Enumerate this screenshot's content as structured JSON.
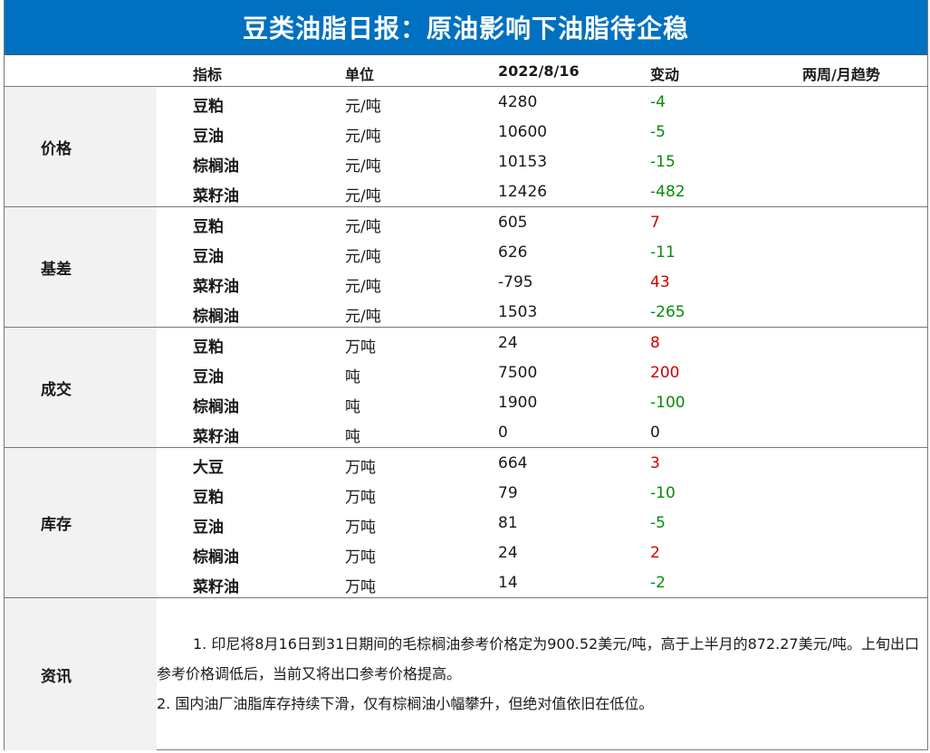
{
  "title": "豆类油脂日报：原油影响下油脂待企稳",
  "header": {
    "indicator": "指标",
    "unit": "单位",
    "date": "2022/8/16",
    "change": "变动",
    "trend": "两周/月趋势"
  },
  "sections": [
    {
      "label": "价格",
      "rows": [
        {
          "name": "豆粕",
          "unit": "元/吨",
          "value": "4280",
          "change": "-4",
          "dir": "down"
        },
        {
          "name": "豆油",
          "unit": "元/吨",
          "value": "10600",
          "change": "-5",
          "dir": "down"
        },
        {
          "name": "棕榈油",
          "unit": "元/吨",
          "value": "10153",
          "change": "-15",
          "dir": "down"
        },
        {
          "name": "菜籽油",
          "unit": "元/吨",
          "value": "12426",
          "change": "-482",
          "dir": "down"
        }
      ]
    },
    {
      "label": "基差",
      "rows": [
        {
          "name": "豆粕",
          "unit": "元/吨",
          "value": "605",
          "change": "7",
          "dir": "up"
        },
        {
          "name": "豆油",
          "unit": "元/吨",
          "value": "626",
          "change": "-11",
          "dir": "down"
        },
        {
          "name": "菜籽油",
          "unit": "元/吨",
          "value": "-795",
          "change": "43",
          "dir": "up"
        },
        {
          "name": "棕榈油",
          "unit": "元/吨",
          "value": "1503",
          "change": "-265",
          "dir": "down"
        }
      ]
    },
    {
      "label": "成交",
      "rows": [
        {
          "name": "豆粕",
          "unit": "万吨",
          "value": "24",
          "change": "8",
          "dir": "up"
        },
        {
          "name": "豆油",
          "unit": "吨",
          "value": "7500",
          "change": "200",
          "dir": "up"
        },
        {
          "name": "棕榈油",
          "unit": "吨",
          "value": "1900",
          "change": "-100",
          "dir": "down"
        },
        {
          "name": "菜籽油",
          "unit": "吨",
          "value": "0",
          "change": "0",
          "dir": "flat"
        }
      ]
    },
    {
      "label": "库存",
      "rows": [
        {
          "name": "大豆",
          "unit": "万吨",
          "value": "664",
          "change": "3",
          "dir": "up"
        },
        {
          "name": "豆粕",
          "unit": "万吨",
          "value": "79",
          "change": "-10",
          "dir": "down"
        },
        {
          "name": "豆油",
          "unit": "万吨",
          "value": "81",
          "change": "-5",
          "dir": "down"
        },
        {
          "name": "棕榈油",
          "unit": "万吨",
          "value": "24",
          "change": "2",
          "dir": "up"
        },
        {
          "name": "菜籽油",
          "unit": "万吨",
          "value": "14",
          "change": "-2",
          "dir": "down"
        }
      ]
    }
  ],
  "news": {
    "label": "资讯",
    "p1": "1. 印尼将8月16日到31日期间的毛棕榈油参考价格定为900.52美元/吨，高于上半月的872.27美元/吨。上旬出口参考价格调低后，当前又将出口参考价格提高。",
    "p2": "2. 国内油厂油脂库存持续下滑，仅有棕榈油小幅攀升，但绝对值依旧在低位。"
  },
  "colors": {
    "title_bg": "#0070c0",
    "up": "#d00000",
    "down": "#0a8a0a",
    "label_bg": "#f2f2f2"
  }
}
